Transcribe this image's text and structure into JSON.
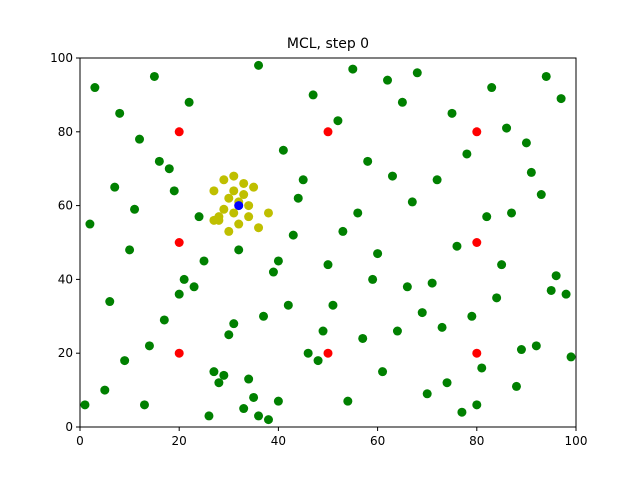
{
  "chart_data": {
    "type": "scatter",
    "title": "MCL, step 0",
    "xlim": [
      0,
      100
    ],
    "ylim": [
      0,
      100
    ],
    "xticks": [
      0,
      20,
      40,
      60,
      80,
      100
    ],
    "yticks": [
      0,
      20,
      40,
      60,
      80,
      100
    ],
    "series": [
      {
        "color": "#008000",
        "x": [
          3,
          8,
          12,
          15,
          18,
          22,
          25,
          28,
          33,
          36,
          41,
          44,
          47,
          52,
          55,
          58,
          62,
          65,
          68,
          72,
          75,
          78,
          83,
          86,
          90,
          94,
          97,
          2,
          6,
          10,
          14,
          19,
          23,
          27,
          31,
          35,
          39,
          43,
          48,
          51,
          56,
          60,
          64,
          67,
          71,
          74,
          79,
          82,
          85,
          89,
          93,
          98,
          5,
          9,
          13,
          17,
          21,
          26,
          30,
          34,
          38,
          42,
          46,
          50,
          54,
          57,
          61,
          66,
          70,
          73,
          77,
          81,
          84,
          88,
          92,
          96,
          1,
          7,
          11,
          16,
          20,
          24,
          29,
          32,
          37,
          40,
          45,
          49,
          53,
          59,
          63,
          69,
          76,
          80,
          87,
          91,
          95,
          99,
          36,
          40
        ],
        "values": [
          92,
          85,
          78,
          95,
          70,
          88,
          45,
          12,
          5,
          98,
          75,
          62,
          90,
          83,
          97,
          72,
          94,
          88,
          96,
          67,
          85,
          74,
          92,
          81,
          77,
          95,
          89,
          55,
          34,
          48,
          22,
          64,
          38,
          15,
          28,
          8,
          42,
          52,
          18,
          33,
          58,
          47,
          26,
          61,
          39,
          12,
          30,
          57,
          44,
          21,
          63,
          36,
          10,
          18,
          6,
          29,
          40,
          3,
          25,
          13,
          2,
          33,
          20,
          44,
          7,
          24,
          15,
          38,
          9,
          27,
          4,
          16,
          35,
          11,
          22,
          41,
          6,
          65,
          59,
          72,
          36,
          57,
          14,
          48,
          30,
          45,
          67,
          26,
          53,
          40,
          68,
          31,
          49,
          6,
          58,
          69,
          37,
          19,
          3,
          7
        ]
      },
      {
        "color": "#bfbf00",
        "x": [
          27,
          28,
          30,
          31,
          32,
          33,
          29,
          34,
          35,
          36,
          30,
          31,
          27,
          33,
          38,
          32,
          29,
          31,
          34,
          28
        ],
        "values": [
          64,
          57,
          62,
          68,
          55,
          66,
          59,
          60,
          65,
          54,
          53,
          58,
          56,
          63,
          58,
          61,
          67,
          64,
          57,
          56
        ]
      },
      {
        "color": "#ff0000",
        "x": [
          20,
          50,
          80,
          20,
          80,
          20,
          50,
          80
        ],
        "values": [
          80,
          80,
          80,
          50,
          50,
          20,
          20,
          20
        ]
      },
      {
        "color": "#0000ff",
        "x": [
          32
        ],
        "values": [
          60
        ]
      }
    ]
  }
}
